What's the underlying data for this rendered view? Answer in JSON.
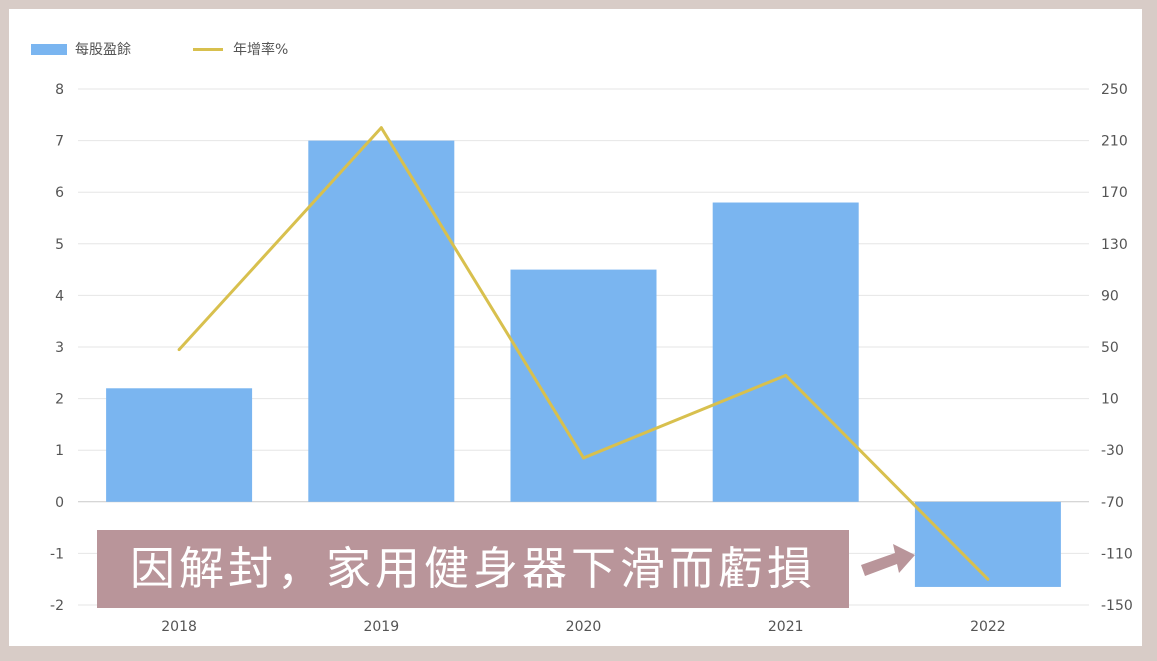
{
  "legend": {
    "bar_label": "每股盈餘",
    "line_label": "年增率%"
  },
  "banner": {
    "text": "因解封，家用健身器下滑而虧損"
  },
  "colors": {
    "bar": "#7ab5f0",
    "line": "#d8c04e",
    "banner": "#b9959a",
    "frame": "#d8ccc7",
    "grid": "#e6e6e6",
    "tick": "#555555"
  },
  "chart_data": {
    "type": "bar",
    "categories": [
      "2018",
      "2019",
      "2020",
      "2021",
      "2022"
    ],
    "series": [
      {
        "name": "每股盈餘",
        "type": "bar",
        "axis": "left",
        "values": [
          2.2,
          7.0,
          4.5,
          5.8,
          -1.65
        ]
      },
      {
        "name": "年增率%",
        "type": "line",
        "axis": "right",
        "values": [
          48,
          220,
          -36,
          28,
          -130
        ]
      }
    ],
    "ylim_left": [
      -2,
      8
    ],
    "yticks_left": [
      "8",
      "7",
      "6",
      "5",
      "4",
      "3",
      "2",
      "1",
      "0",
      "-1",
      "-2"
    ],
    "ylim_right": [
      -150,
      250
    ],
    "yticks_right": [
      "250",
      "210",
      "170",
      "130",
      "90",
      "50",
      "10",
      "-30",
      "-70",
      "-110",
      "-150"
    ],
    "grid": true,
    "legend_position": "top-left"
  }
}
